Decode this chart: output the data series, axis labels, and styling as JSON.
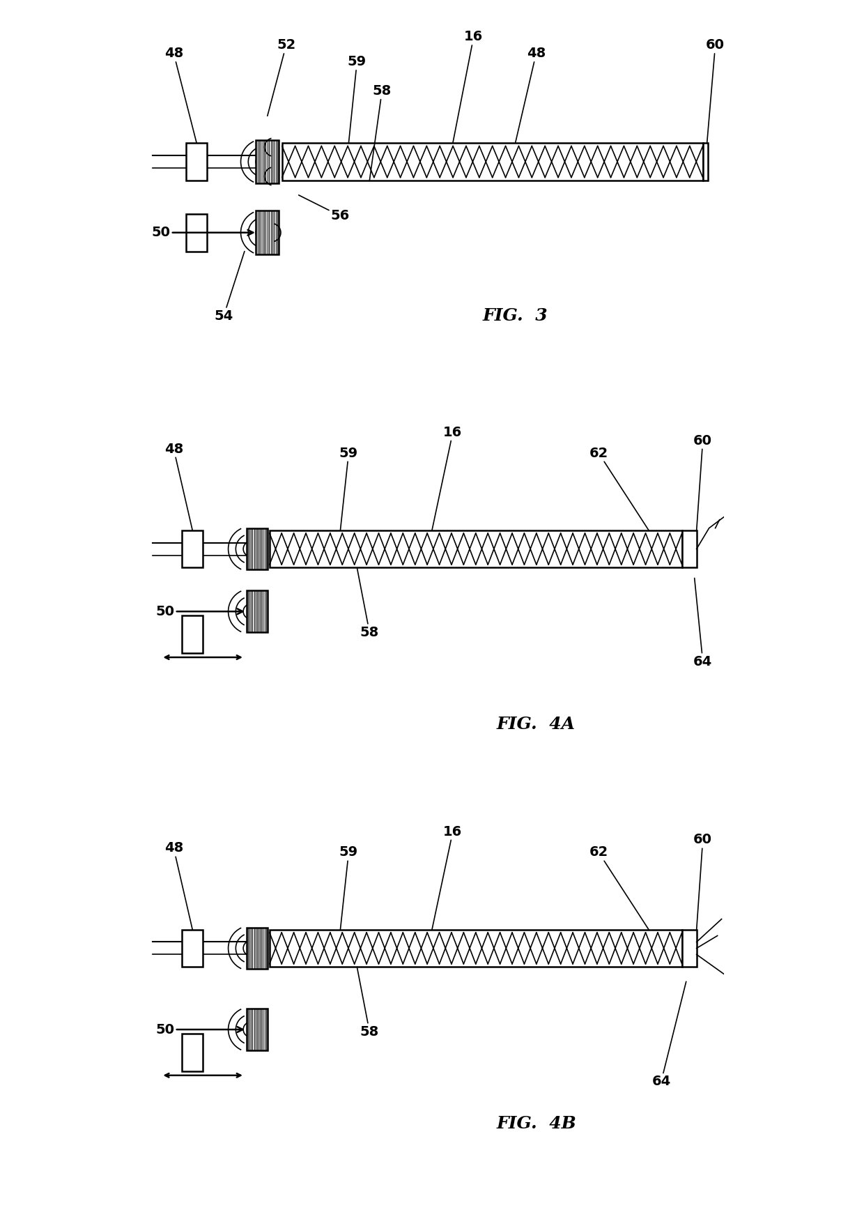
{
  "bg_color": "#ffffff",
  "line_color": "#000000",
  "fig_width": 12.4,
  "fig_height": 17.36,
  "fig3_label": "FIG.  3",
  "fig4a_label": "FIG.  4A",
  "fig4b_label": "FIG.  4B",
  "lw_main": 1.8,
  "lw_thin": 1.2,
  "lw_med": 1.5,
  "font_size_label": 14,
  "font_size_fig": 18
}
